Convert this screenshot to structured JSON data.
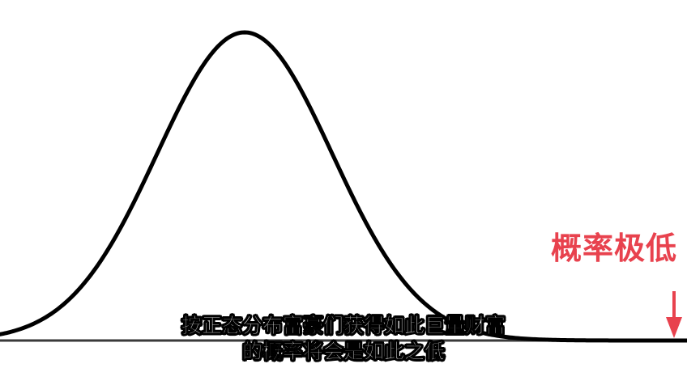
{
  "diagram": {
    "curve_type": "normal distribution (bell curve)",
    "line_color": "#000000",
    "annotation_color": "#e8424e",
    "background": "#ffffff"
  },
  "annotation": {
    "text": "概率极低",
    "icon": "down-arrow-icon"
  },
  "subtitles": {
    "line1": "按正态分布富豪们获得如此巨量财富",
    "line2": "的概率将会是如此之低"
  }
}
